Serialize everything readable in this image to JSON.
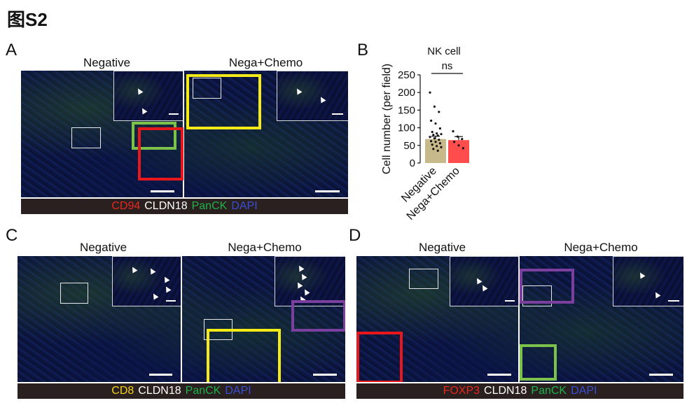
{
  "figure_title": "图S2",
  "panels": {
    "A": {
      "label": "A",
      "left_title": "Negative",
      "right_title": "Nega+Chemo",
      "legend": [
        {
          "text": "CD94",
          "color": "#e8271f"
        },
        {
          "text": "CLDN18",
          "color": "#ffffff"
        },
        {
          "text": "PanCK",
          "color": "#1fb34a"
        },
        {
          "text": "DAPI",
          "color": "#3a4fd8"
        }
      ]
    },
    "B": {
      "label": "B"
    },
    "C": {
      "label": "C",
      "left_title": "Negative",
      "right_title": "Nega+Chemo",
      "legend": [
        {
          "text": "CD8",
          "color": "#f3d21a"
        },
        {
          "text": "CLDN18",
          "color": "#ffffff"
        },
        {
          "text": "PanCK",
          "color": "#1fb34a"
        },
        {
          "text": "DAPI",
          "color": "#3a4fd8"
        }
      ]
    },
    "D": {
      "label": "D",
      "left_title": "Negative",
      "right_title": "Nega+Chemo",
      "legend": [
        {
          "text": "FOXP3",
          "color": "#e8271f"
        },
        {
          "text": "CLDN18",
          "color": "#ffffff"
        },
        {
          "text": "PanCK",
          "color": "#1fb34a"
        },
        {
          "text": "DAPI",
          "color": "#3a4fd8"
        }
      ]
    }
  },
  "colors": {
    "red_box": "#e8171c",
    "green_box": "#7cc24a",
    "yellow_box": "#f3ea18",
    "purple_box": "#7b3f9e",
    "bar_negative": "#c8b98a",
    "bar_nega_chemo": "#ff4d4d"
  },
  "chart_data": {
    "type": "bar",
    "title": "NK cell",
    "ylabel": "Cell number (per field)",
    "xlabel": "",
    "ylim": [
      0,
      250
    ],
    "yticks": [
      0,
      50,
      100,
      150,
      200,
      250
    ],
    "categories": [
      "Negative",
      "Nega+Chemo"
    ],
    "values": [
      68,
      65
    ],
    "errors": [
      8,
      10
    ],
    "points": [
      [
        200,
        160,
        145,
        120,
        112,
        98,
        88,
        84,
        82,
        80,
        78,
        74,
        70,
        66,
        62,
        60,
        56,
        52,
        48,
        45,
        40,
        35
      ],
      [
        90,
        75,
        68,
        60,
        50,
        42
      ]
    ],
    "annotation": "ns"
  }
}
